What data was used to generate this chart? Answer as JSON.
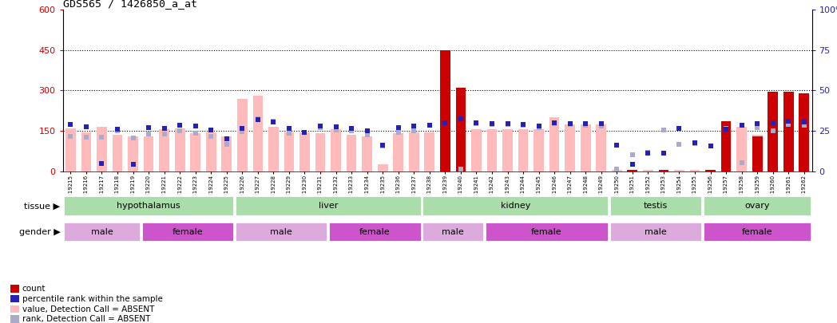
{
  "title": "GDS565 / 1426850_a_at",
  "samples": [
    "GSM19215",
    "GSM19216",
    "GSM19217",
    "GSM19218",
    "GSM19219",
    "GSM19220",
    "GSM19221",
    "GSM19222",
    "GSM19223",
    "GSM19224",
    "GSM19225",
    "GSM19226",
    "GSM19227",
    "GSM19228",
    "GSM19229",
    "GSM19230",
    "GSM19231",
    "GSM19232",
    "GSM19233",
    "GSM19234",
    "GSM19235",
    "GSM19236",
    "GSM19237",
    "GSM19238",
    "GSM19239",
    "GSM19240",
    "GSM19241",
    "GSM19242",
    "GSM19243",
    "GSM19244",
    "GSM19245",
    "GSM19246",
    "GSM19247",
    "GSM19248",
    "GSM19249",
    "GSM19250",
    "GSM19251",
    "GSM19252",
    "GSM19253",
    "GSM19254",
    "GSM19255",
    "GSM19256",
    "GSM19257",
    "GSM19258",
    "GSM19259",
    "GSM19260",
    "GSM19261",
    "GSM19262"
  ],
  "bar_red": [
    0,
    0,
    0,
    0,
    0,
    0,
    0,
    0,
    0,
    0,
    0,
    0,
    0,
    0,
    0,
    0,
    0,
    0,
    0,
    0,
    0,
    0,
    0,
    0,
    450,
    310,
    0,
    0,
    0,
    0,
    0,
    0,
    0,
    0,
    0,
    0,
    5,
    0,
    5,
    0,
    0,
    5,
    185,
    0,
    130,
    295,
    295,
    290
  ],
  "bar_pink": [
    160,
    145,
    165,
    135,
    130,
    130,
    155,
    160,
    140,
    145,
    130,
    270,
    280,
    165,
    145,
    145,
    140,
    155,
    135,
    130,
    25,
    140,
    145,
    145,
    300,
    165,
    155,
    155,
    155,
    155,
    155,
    200,
    175,
    175,
    175,
    5,
    5,
    5,
    5,
    5,
    5,
    5,
    0,
    165,
    135,
    165,
    165,
    145
  ],
  "dot_blue": [
    175,
    165,
    30,
    155,
    27,
    162,
    159,
    171,
    168,
    153,
    120,
    159,
    192,
    183,
    159,
    144,
    168,
    165,
    159,
    150,
    96,
    162,
    168,
    171,
    180,
    195,
    180,
    177,
    177,
    174,
    168,
    180,
    177,
    177,
    177,
    96,
    27,
    66,
    66,
    159,
    105,
    93,
    156,
    171,
    177,
    180,
    186,
    183
  ],
  "dot_lb": [
    129,
    126,
    126,
    150,
    123,
    138,
    138,
    150,
    141,
    129,
    99,
    147,
    195,
    186,
    141,
    144,
    162,
    153,
    150,
    135,
    93,
    144,
    150,
    171,
    0,
    9,
    177,
    174,
    174,
    171,
    162,
    177,
    174,
    171,
    168,
    9,
    60,
    69,
    153,
    99,
    102,
    93,
    159,
    33,
    162,
    150,
    174,
    171
  ],
  "ylim_left": [
    0,
    600
  ],
  "yticks_left": [
    0,
    150,
    300,
    450,
    600
  ],
  "yticks_right_labels": [
    "0",
    "25",
    "50",
    "75",
    "100%"
  ],
  "yticks_right_pos": [
    0,
    150,
    300,
    450,
    600
  ],
  "hlines": [
    150,
    300,
    450
  ],
  "tissue_groups": [
    {
      "label": "hypothalamus",
      "start": 0,
      "end": 11
    },
    {
      "label": "liver",
      "start": 11,
      "end": 23
    },
    {
      "label": "kidney",
      "start": 23,
      "end": 35
    },
    {
      "label": "testis",
      "start": 35,
      "end": 41
    },
    {
      "label": "ovary",
      "start": 41,
      "end": 48
    }
  ],
  "gender_groups": [
    {
      "label": "male",
      "start": 0,
      "end": 5,
      "female": false
    },
    {
      "label": "female",
      "start": 5,
      "end": 11,
      "female": true
    },
    {
      "label": "male",
      "start": 11,
      "end": 17,
      "female": false
    },
    {
      "label": "female",
      "start": 17,
      "end": 23,
      "female": true
    },
    {
      "label": "male",
      "start": 23,
      "end": 27,
      "female": false
    },
    {
      "label": "female",
      "start": 27,
      "end": 35,
      "female": true
    },
    {
      "label": "male",
      "start": 35,
      "end": 41,
      "female": false
    },
    {
      "label": "female",
      "start": 41,
      "end": 48,
      "female": true
    }
  ],
  "color_red": "#cc0000",
  "color_pink": "#ffbbbb",
  "color_blue": "#2222bb",
  "color_lb": "#aaaacc",
  "color_tissue": "#aaddaa",
  "color_male": "#ddaadd",
  "color_female": "#cc55cc",
  "bg_fig": "#ffffff"
}
